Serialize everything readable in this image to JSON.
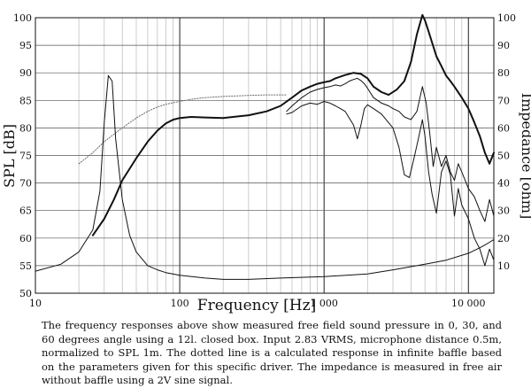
{
  "chart_data": {
    "type": "line",
    "xlabel": "Frequency [Hz]",
    "ylabel_left": "SPL [dB]",
    "ylabel_right": "Impedance [ohm]",
    "x_scale": "log",
    "xlim": [
      10,
      15000
    ],
    "ylim_left": [
      50,
      100
    ],
    "ylim_right": [
      0,
      100
    ],
    "x_ticks": [
      {
        "value": 10,
        "label": "10"
      },
      {
        "value": 100,
        "label": "100"
      },
      {
        "value": 1000,
        "label": "1 000"
      },
      {
        "value": 10000,
        "label": "10 000"
      }
    ],
    "y_left_ticks": [
      {
        "value": 50,
        "label": "50"
      },
      {
        "value": 55,
        "label": "55"
      },
      {
        "value": 60,
        "label": "60"
      },
      {
        "value": 65,
        "label": "65"
      },
      {
        "value": 70,
        "label": "70"
      },
      {
        "value": 75,
        "label": "75"
      },
      {
        "value": 80,
        "label": "80"
      },
      {
        "value": 85,
        "label": "85"
      },
      {
        "value": 90,
        "label": "90"
      },
      {
        "value": 95,
        "label": "95"
      },
      {
        "value": 100,
        "label": "100"
      }
    ],
    "y_right_ticks": [
      {
        "value": 10,
        "label": "10"
      },
      {
        "value": 20,
        "label": "20"
      },
      {
        "value": 30,
        "label": "30"
      },
      {
        "value": 40,
        "label": "40"
      },
      {
        "value": 50,
        "label": "50"
      },
      {
        "value": 60,
        "label": "60"
      },
      {
        "value": 70,
        "label": "70"
      },
      {
        "value": 80,
        "label": "80"
      },
      {
        "value": 90,
        "label": "90"
      },
      {
        "value": 100,
        "label": "100"
      }
    ],
    "grid": true,
    "series": [
      {
        "axis": "left",
        "style": "solid",
        "width": 2.0,
        "x": [
          25,
          30,
          35,
          40,
          50,
          60,
          70,
          80,
          90,
          100,
          120,
          150,
          200,
          300,
          400,
          500,
          600,
          700,
          800,
          900,
          1000,
          1100,
          1200,
          1400,
          1600,
          1800,
          2000,
          2200,
          2500,
          2800,
          3200,
          3600,
          4000,
          4400,
          4800,
          5000,
          5300,
          5600,
          6000,
          6500,
          7000,
          7500,
          8000,
          9000,
          10000,
          11000,
          12000,
          13000,
          14000,
          15000
        ],
        "y": [
          60.5,
          63.5,
          67,
          70.5,
          74.5,
          77.5,
          79.5,
          80.8,
          81.5,
          81.8,
          82,
          81.9,
          81.8,
          82.3,
          83,
          84,
          85.5,
          86.8,
          87.5,
          88,
          88.3,
          88.5,
          89,
          89.6,
          90,
          89.8,
          89,
          87.5,
          86.5,
          86,
          87,
          88.5,
          92,
          97,
          100.5,
          99.5,
          97.5,
          95.5,
          93,
          91.2,
          89.5,
          88.5,
          87.5,
          85.5,
          83.5,
          81,
          78.5,
          75.5,
          73.5,
          75.5
        ]
      },
      {
        "axis": "left",
        "style": "solid",
        "width": 1.0,
        "x": [
          550,
          600,
          700,
          800,
          900,
          1000,
          1100,
          1200,
          1300,
          1400,
          1500,
          1600,
          1700,
          1800,
          1900,
          2000,
          2200,
          2500,
          2800,
          3000,
          3300,
          3600,
          4000,
          4400,
          4800,
          5100,
          5400,
          5700,
          6000,
          6500,
          7000,
          7500,
          8000,
          8500,
          9000,
          10000,
          11000,
          12000,
          13000,
          14000,
          15000
        ],
        "y": [
          83,
          84,
          85.5,
          86.5,
          87,
          87.3,
          87.5,
          87.8,
          87.6,
          88,
          88.5,
          88.8,
          89,
          88.6,
          88,
          87.2,
          85.5,
          84.5,
          84,
          83.5,
          83,
          82,
          81.5,
          83,
          87.5,
          84.5,
          79,
          73,
          76.5,
          73,
          75,
          72,
          70.5,
          73.5,
          72,
          69,
          67.5,
          65,
          63,
          67,
          64
        ]
      },
      {
        "axis": "left",
        "style": "solid",
        "width": 1.0,
        "x": [
          550,
          600,
          700,
          800,
          900,
          1000,
          1100,
          1200,
          1400,
          1600,
          1700,
          1800,
          1900,
          2000,
          2200,
          2500,
          3000,
          3300,
          3600,
          3900,
          4200,
          4500,
          4800,
          5000,
          5300,
          5600,
          6000,
          6500,
          7000,
          7500,
          8000,
          8500,
          9000,
          10000,
          11000,
          12000,
          13000,
          14000,
          15000
        ],
        "y": [
          82.5,
          82.8,
          84,
          84.5,
          84.3,
          84.8,
          84.5,
          84,
          83,
          80.5,
          78,
          80.5,
          83.5,
          84.2,
          83.5,
          82.5,
          80,
          76.5,
          71.5,
          71,
          74.5,
          78,
          81.5,
          78.5,
          72,
          68,
          64.5,
          72,
          74,
          71.5,
          64,
          69,
          66,
          63.5,
          60,
          58,
          55,
          58,
          56
        ]
      },
      {
        "axis": "left",
        "style": "dotted",
        "width": 1.0,
        "x": [
          20,
          25,
          30,
          40,
          50,
          60,
          70,
          80,
          100,
          120,
          150,
          200,
          300,
          400,
          500,
          550
        ],
        "y": [
          73.5,
          75.5,
          77.5,
          80,
          81.8,
          83,
          83.8,
          84.3,
          84.8,
          85.2,
          85.5,
          85.7,
          85.9,
          86,
          86,
          86
        ]
      },
      {
        "axis": "right",
        "style": "solid",
        "width": 1.0,
        "x": [
          10,
          15,
          20,
          25,
          28,
          30,
          32,
          34,
          36,
          40,
          45,
          50,
          60,
          70,
          80,
          100,
          150,
          200,
          300,
          500,
          1000,
          2000,
          3000,
          5000,
          7000,
          10000,
          12000,
          13000,
          14000,
          15000
        ],
        "y": [
          8,
          10.5,
          15,
          23,
          37,
          62,
          79,
          77,
          56,
          34,
          21,
          15,
          10,
          8.5,
          7.5,
          6.5,
          5.5,
          5,
          5,
          5.5,
          6,
          7,
          8.5,
          10.5,
          12,
          14.5,
          16.5,
          17.5,
          18.5,
          19.5
        ]
      }
    ]
  },
  "caption": "The frequency responses above show measured free field sound pressure in 0, 30, and 60 degrees angle using a 12l. closed box. Input 2.83 VRMS, microphone distance 0.5m, normalized to SPL 1m. The dotted line is a calculated response in infinite baffle based on the parameters given for this specific driver. The impedance is measured in free air without baffle using a 2V sine signal."
}
